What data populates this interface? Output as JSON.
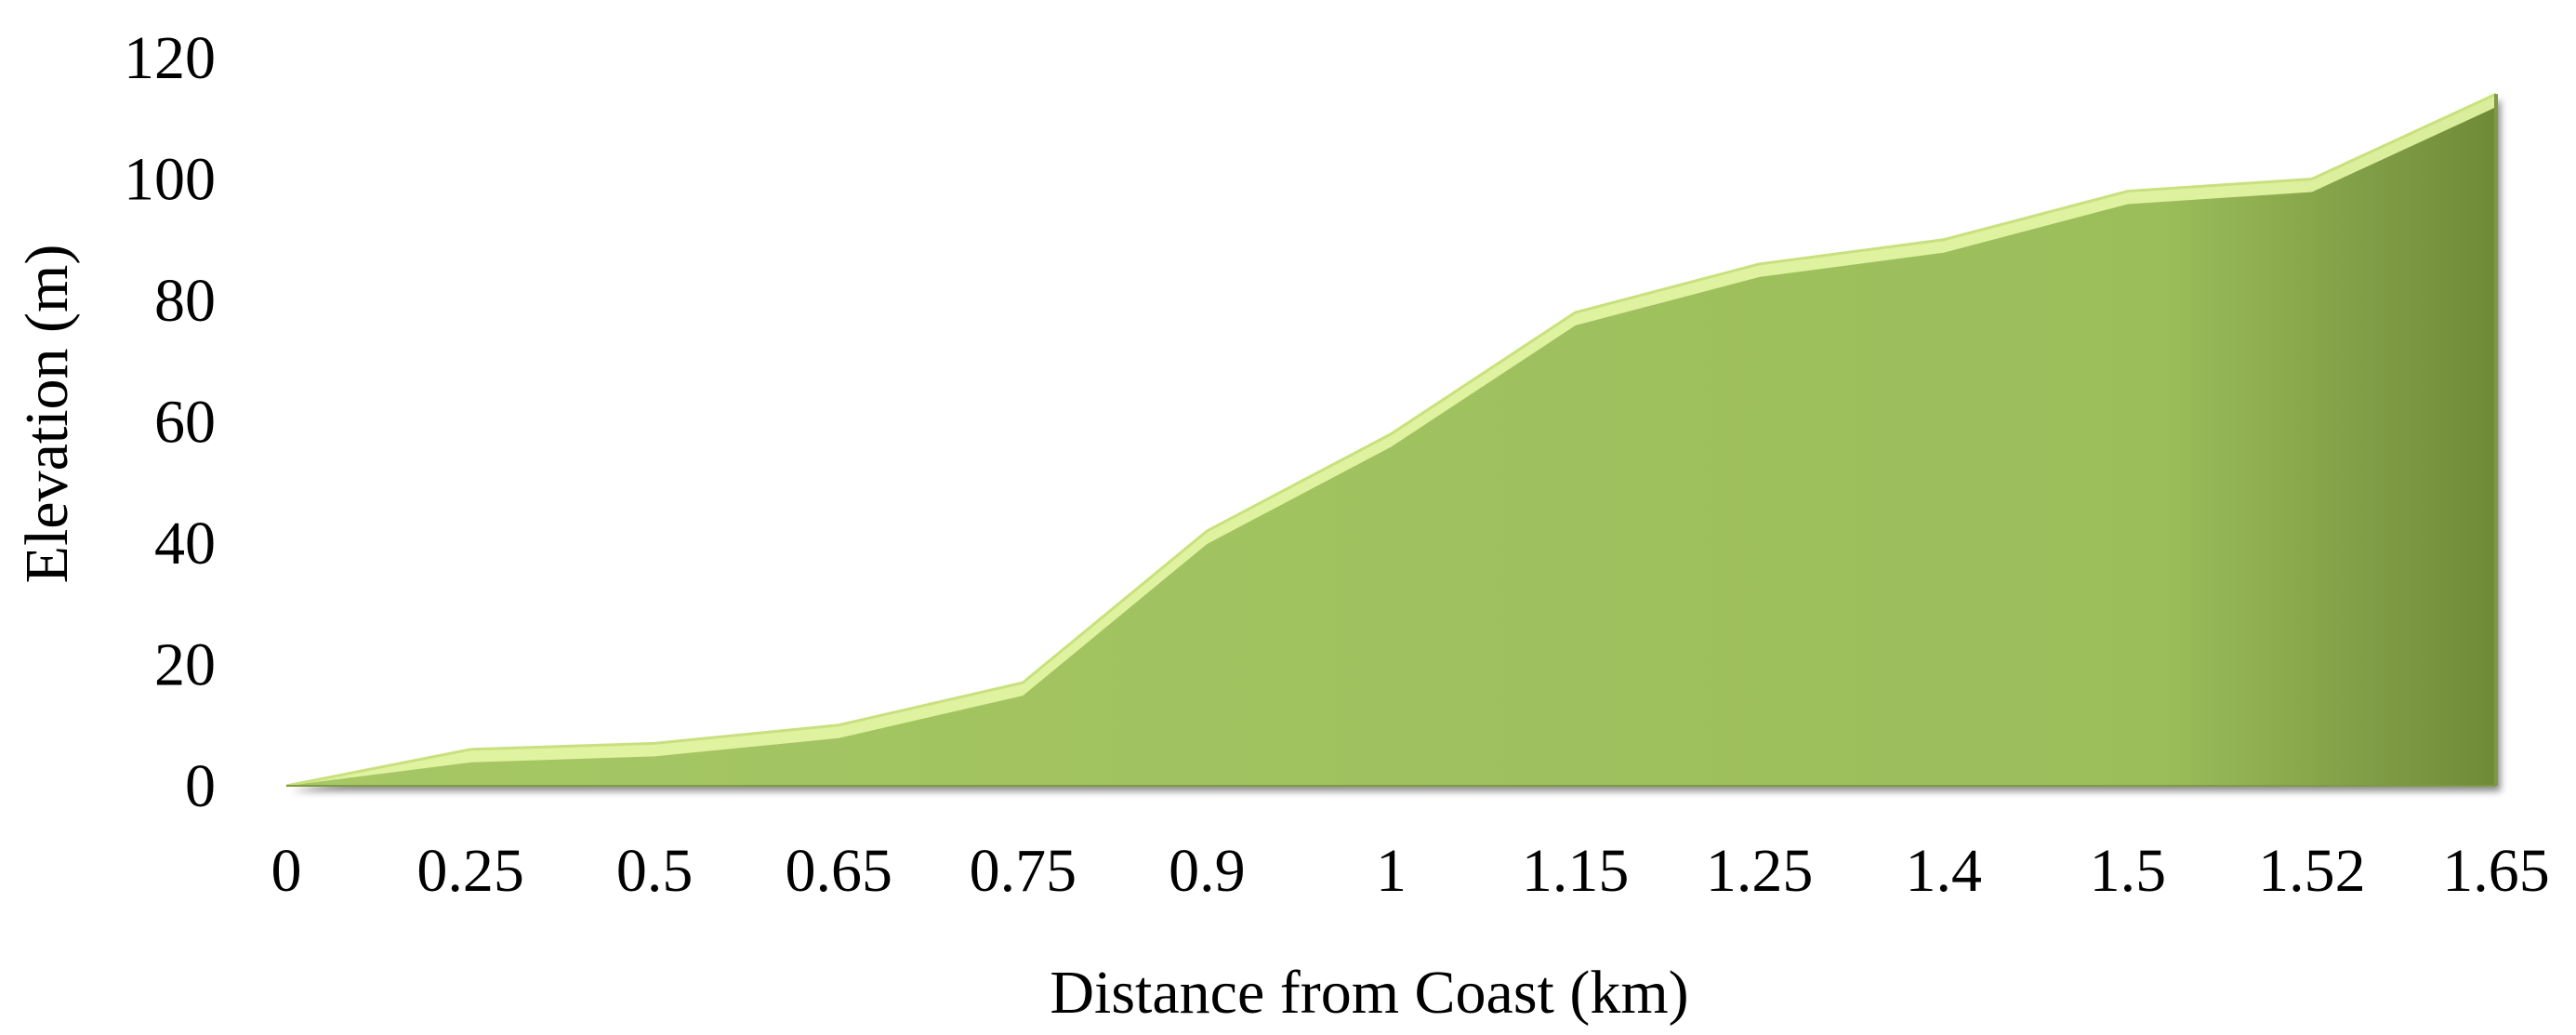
{
  "chart_data": {
    "type": "area",
    "categories": [
      "0",
      "0.25",
      "0.5",
      "0.65",
      "0.75",
      "0.9",
      "1",
      "1.15",
      "1.25",
      "1.4",
      "1.5",
      "1.52",
      "1.65"
    ],
    "series": [
      {
        "values": [
          0,
          6,
          7,
          10,
          17,
          42,
          58,
          78,
          86,
          90,
          98,
          100,
          114
        ]
      }
    ],
    "title": "",
    "xlabel": "Distance from Coast (km)",
    "ylabel": "Elevation (m)",
    "ylim": [
      0,
      120
    ],
    "yticks": [
      "0",
      "20",
      "40",
      "60",
      "80",
      "100",
      "120"
    ],
    "grid": false,
    "legend": "none",
    "colors": {
      "fill": "#a6c765",
      "highlight": "#e6f7a6",
      "edge": "#7e9a44",
      "shadow": "#8a8a8a"
    }
  }
}
